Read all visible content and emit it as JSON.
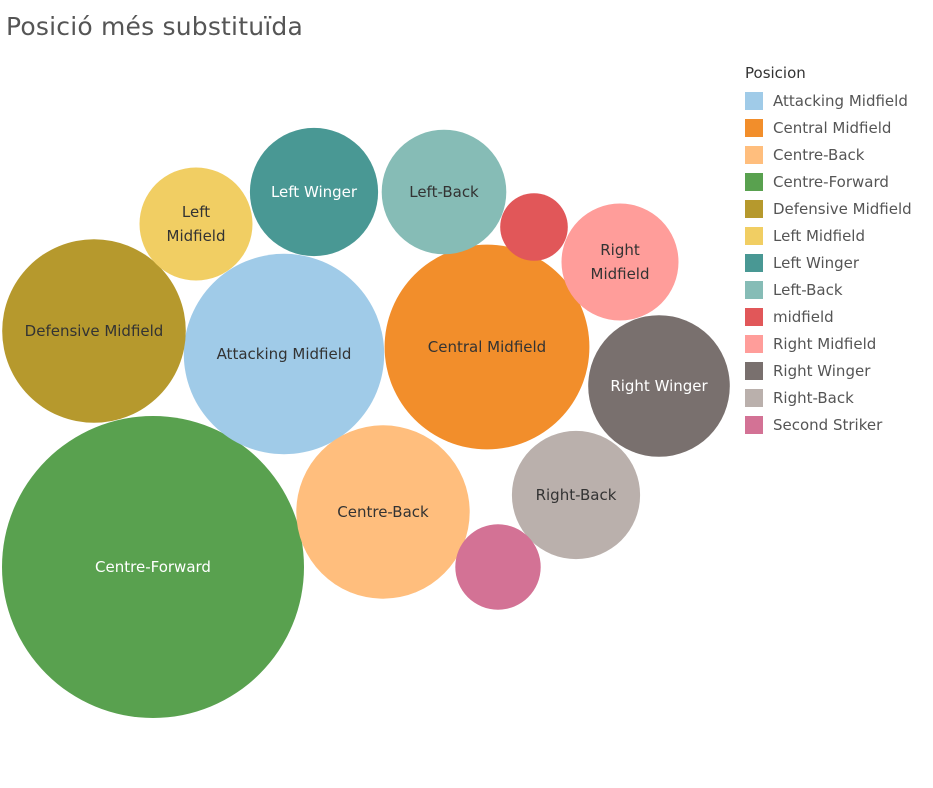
{
  "title": "Posició més substituïda",
  "legend": {
    "title": "Posicion",
    "items": [
      {
        "label": "Attacking Midfield",
        "color": "#a0cbe8"
      },
      {
        "label": "Central Midfield",
        "color": "#f28e2b"
      },
      {
        "label": "Centre-Back",
        "color": "#ffbe7d"
      },
      {
        "label": "Centre-Forward",
        "color": "#59a14f"
      },
      {
        "label": "Defensive Midfield",
        "color": "#b6992d"
      },
      {
        "label": "Left Midfield",
        "color": "#f1ce63"
      },
      {
        "label": "Left Winger",
        "color": "#499894"
      },
      {
        "label": "Left-Back",
        "color": "#86bcb6"
      },
      {
        "label": "midfield",
        "color": "#e15759"
      },
      {
        "label": "Right Midfield",
        "color": "#ff9d9a"
      },
      {
        "label": "Right Winger",
        "color": "#79706e"
      },
      {
        "label": "Right-Back",
        "color": "#bab0ac"
      },
      {
        "label": "Second Striker",
        "color": "#d37295"
      }
    ]
  },
  "chart_data": {
    "type": "bubble",
    "title": "Posició més substituïda",
    "legend_title": "Posicion",
    "legend_position": "right",
    "bubbles": [
      {
        "name": "Centre-Forward",
        "label_lines": [
          "Centre-Forward"
        ],
        "value": 100,
        "color": "#59a14f",
        "text_color": "#ffffff"
      },
      {
        "name": "Central Midfield",
        "label_lines": [
          "Central Midfield"
        ],
        "value": 46,
        "color": "#f28e2b",
        "text_color": "#333333"
      },
      {
        "name": "Attacking Midfield",
        "label_lines": [
          "Attacking Midfield"
        ],
        "value": 44,
        "color": "#a0cbe8",
        "text_color": "#333333"
      },
      {
        "name": "Defensive Midfield",
        "label_lines": [
          "Defensive Midfield"
        ],
        "value": 37,
        "color": "#b6992d",
        "text_color": "#333333"
      },
      {
        "name": "Centre-Back",
        "label_lines": [
          "Centre-Back"
        ],
        "value": 33,
        "color": "#ffbe7d",
        "text_color": "#333333"
      },
      {
        "name": "Right Winger",
        "label_lines": [
          "Right Winger"
        ],
        "value": 22,
        "color": "#79706e",
        "text_color": "#ffffff"
      },
      {
        "name": "Right-Back",
        "label_lines": [
          "Right-Back"
        ],
        "value": 18,
        "color": "#bab0ac",
        "text_color": "#333333"
      },
      {
        "name": "Left Winger",
        "label_lines": [
          "Left Winger"
        ],
        "value": 18,
        "color": "#499894",
        "text_color": "#ffffff"
      },
      {
        "name": "Left-Back",
        "label_lines": [
          "Left-Back"
        ],
        "value": 17,
        "color": "#86bcb6",
        "text_color": "#333333"
      },
      {
        "name": "Right Midfield",
        "label_lines": [
          "Right",
          "Midfield"
        ],
        "value": 15,
        "color": "#ff9d9a",
        "text_color": "#333333"
      },
      {
        "name": "Left Midfield",
        "label_lines": [
          "Left",
          "Midfield"
        ],
        "value": 14,
        "color": "#f1ce63",
        "text_color": "#333333"
      },
      {
        "name": "Second Striker",
        "label_lines": [],
        "value": 8,
        "color": "#d37295",
        "text_color": "#ffffff"
      },
      {
        "name": "midfield",
        "label_lines": [],
        "value": 5,
        "color": "#e15759",
        "text_color": "#ffffff"
      }
    ]
  }
}
